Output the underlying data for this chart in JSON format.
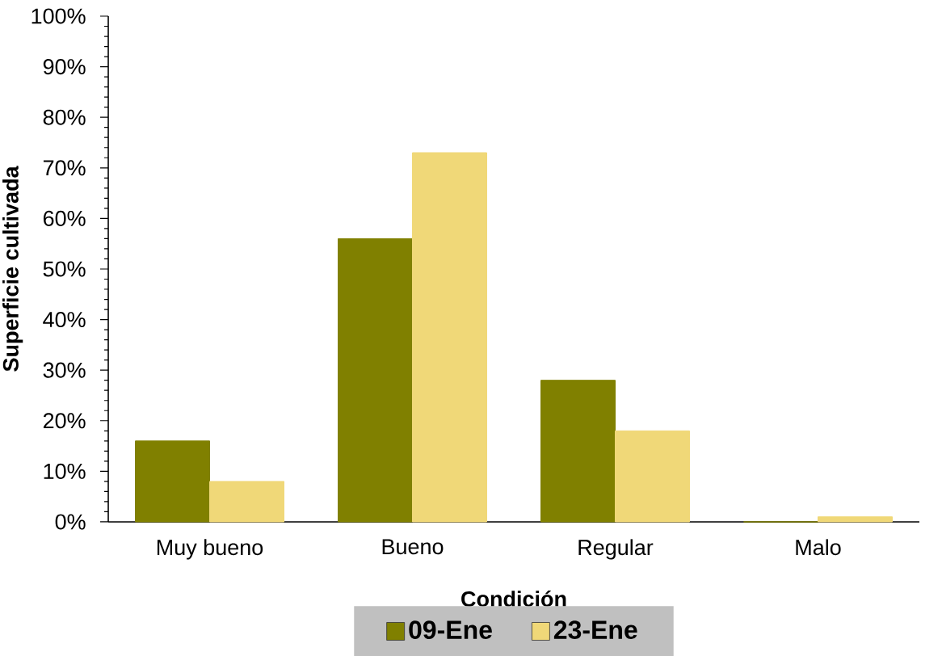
{
  "chart_data": {
    "type": "bar",
    "xlabel": "Condición",
    "ylabel": "Superficie cultivada",
    "categories": [
      "Muy bueno",
      "Bueno",
      "Regular",
      "Malo"
    ],
    "series": [
      {
        "name": "09-Ene",
        "color": "#808000",
        "values": [
          16,
          56,
          28,
          0
        ]
      },
      {
        "name": "23-Ene",
        "color": "#f0d878",
        "values": [
          8,
          73,
          18,
          1
        ]
      }
    ],
    "ylim": [
      0,
      100
    ],
    "yticks": [
      {
        "value": 0,
        "label": "0%"
      },
      {
        "value": 10,
        "label": "10%"
      },
      {
        "value": 20,
        "label": "20%"
      },
      {
        "value": 30,
        "label": "30%"
      },
      {
        "value": 40,
        "label": "40%"
      },
      {
        "value": 50,
        "label": "50%"
      },
      {
        "value": 60,
        "label": "60%"
      },
      {
        "value": 70,
        "label": "70%"
      },
      {
        "value": 80,
        "label": "80%"
      },
      {
        "value": 90,
        "label": "90%"
      },
      {
        "value": 100,
        "label": "100%"
      }
    ],
    "legend": "bottom"
  }
}
